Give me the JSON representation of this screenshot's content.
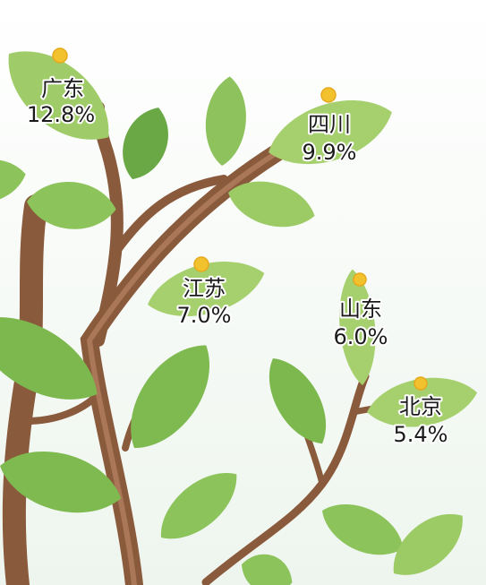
{
  "labels": [
    {
      "name": "广东",
      "share": "12.8%"
    },
    {
      "name": "四川",
      "share": "9.9%"
    },
    {
      "name": "江苏",
      "share": "7.0%"
    },
    {
      "name": "山东",
      "share": "6.0%"
    },
    {
      "name": "北京",
      "share": "5.4%"
    }
  ]
}
